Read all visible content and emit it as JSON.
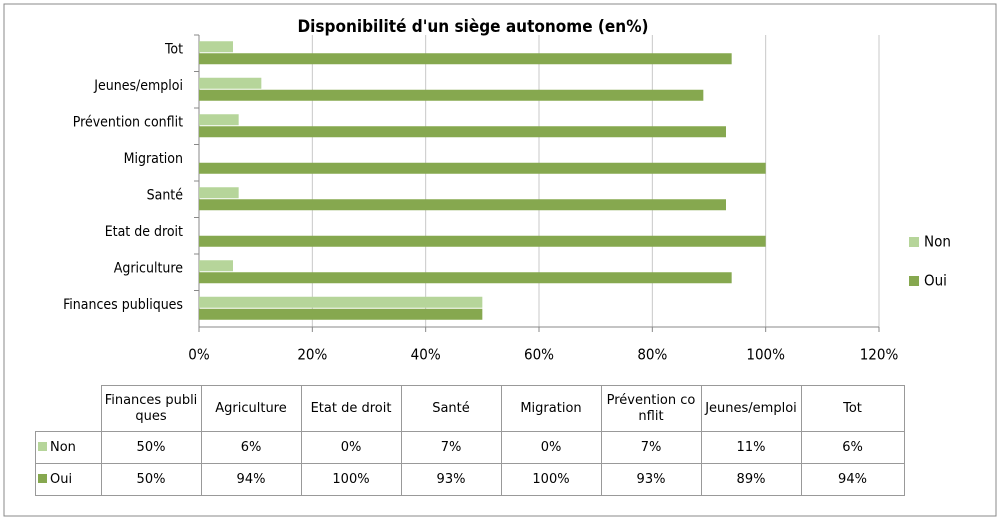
{
  "chart_data": {
    "type": "barh",
    "title": "Disponibilité d'un siège autonome (en%)",
    "categories": [
      "Finances publiques",
      "Agriculture",
      "Etat de droit",
      "Santé",
      "Migration",
      "Prévention conflit",
      "Jeunes/emploi",
      "Tot"
    ],
    "series": [
      {
        "name": "Non",
        "color": "#b6d59a",
        "values": [
          50,
          6,
          0,
          7,
          0,
          7,
          11,
          6
        ],
        "value_labels": [
          "50%",
          "6%",
          "0%",
          "7%",
          "0%",
          "7%",
          "11%",
          "6%"
        ]
      },
      {
        "name": "Oui",
        "color": "#86a84f",
        "values": [
          50,
          94,
          100,
          93,
          100,
          93,
          89,
          94
        ],
        "value_labels": [
          "50%",
          "94%",
          "100%",
          "93%",
          "100%",
          "93%",
          "89%",
          "94%"
        ]
      }
    ],
    "xlim": [
      0,
      120
    ],
    "xticks": [
      {
        "value": 0,
        "label": "0%"
      },
      {
        "value": 20,
        "label": "20%"
      },
      {
        "value": 40,
        "label": "40%"
      },
      {
        "value": 60,
        "label": "60%"
      },
      {
        "value": 80,
        "label": "80%"
      },
      {
        "value": 100,
        "label": "100%"
      },
      {
        "value": 120,
        "label": "120%"
      }
    ],
    "grid": true,
    "legend": "right"
  }
}
